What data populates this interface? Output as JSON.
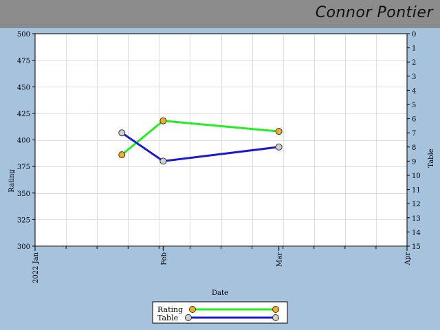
{
  "header": {
    "player_name": "Connor Pontier"
  },
  "colors": {
    "background": "#a6c2dd",
    "header": "#8c8c8c",
    "plot_bg": "#ffffff",
    "grid": "#dddddd",
    "rating_line": "#22ee22",
    "rating_marker": "#f0b020",
    "table_line": "#1a1ad0",
    "table_marker": "#d0d0d0"
  },
  "chart_data": {
    "type": "line",
    "xlabel": "Date",
    "ylabel_left": "Rating",
    "ylabel_right": "Table",
    "x_range": [
      "2022-01-01",
      "2022-04-01"
    ],
    "x_ticks": [
      {
        "date": "2022-01-01",
        "label": "2022 Jan"
      },
      {
        "date": "2022-02-01",
        "label": "Feb"
      },
      {
        "date": "2022-03-01",
        "label": "Mar"
      },
      {
        "date": "2022-04-01",
        "label": "Apr"
      }
    ],
    "y_left": {
      "min": 300,
      "max": 500,
      "ticks": [
        300,
        325,
        350,
        375,
        400,
        425,
        450,
        475,
        500
      ]
    },
    "y_right": {
      "min": 0,
      "max": 15,
      "reversed": true,
      "ticks": [
        0,
        1,
        2,
        3,
        4,
        5,
        6,
        7,
        8,
        9,
        10,
        11,
        12,
        13,
        14,
        15
      ]
    },
    "grid": true,
    "legend_position": "bottom-center",
    "series": [
      {
        "name": "Rating",
        "axis": "left",
        "points": [
          {
            "date": "2022-01-22",
            "value": 386
          },
          {
            "date": "2022-02-01",
            "value": 418
          },
          {
            "date": "2022-03-01",
            "value": 408
          }
        ]
      },
      {
        "name": "Table",
        "axis": "right",
        "points": [
          {
            "date": "2022-01-22",
            "value": 7
          },
          {
            "date": "2022-02-01",
            "value": 9
          },
          {
            "date": "2022-03-01",
            "value": 8
          }
        ]
      }
    ]
  }
}
